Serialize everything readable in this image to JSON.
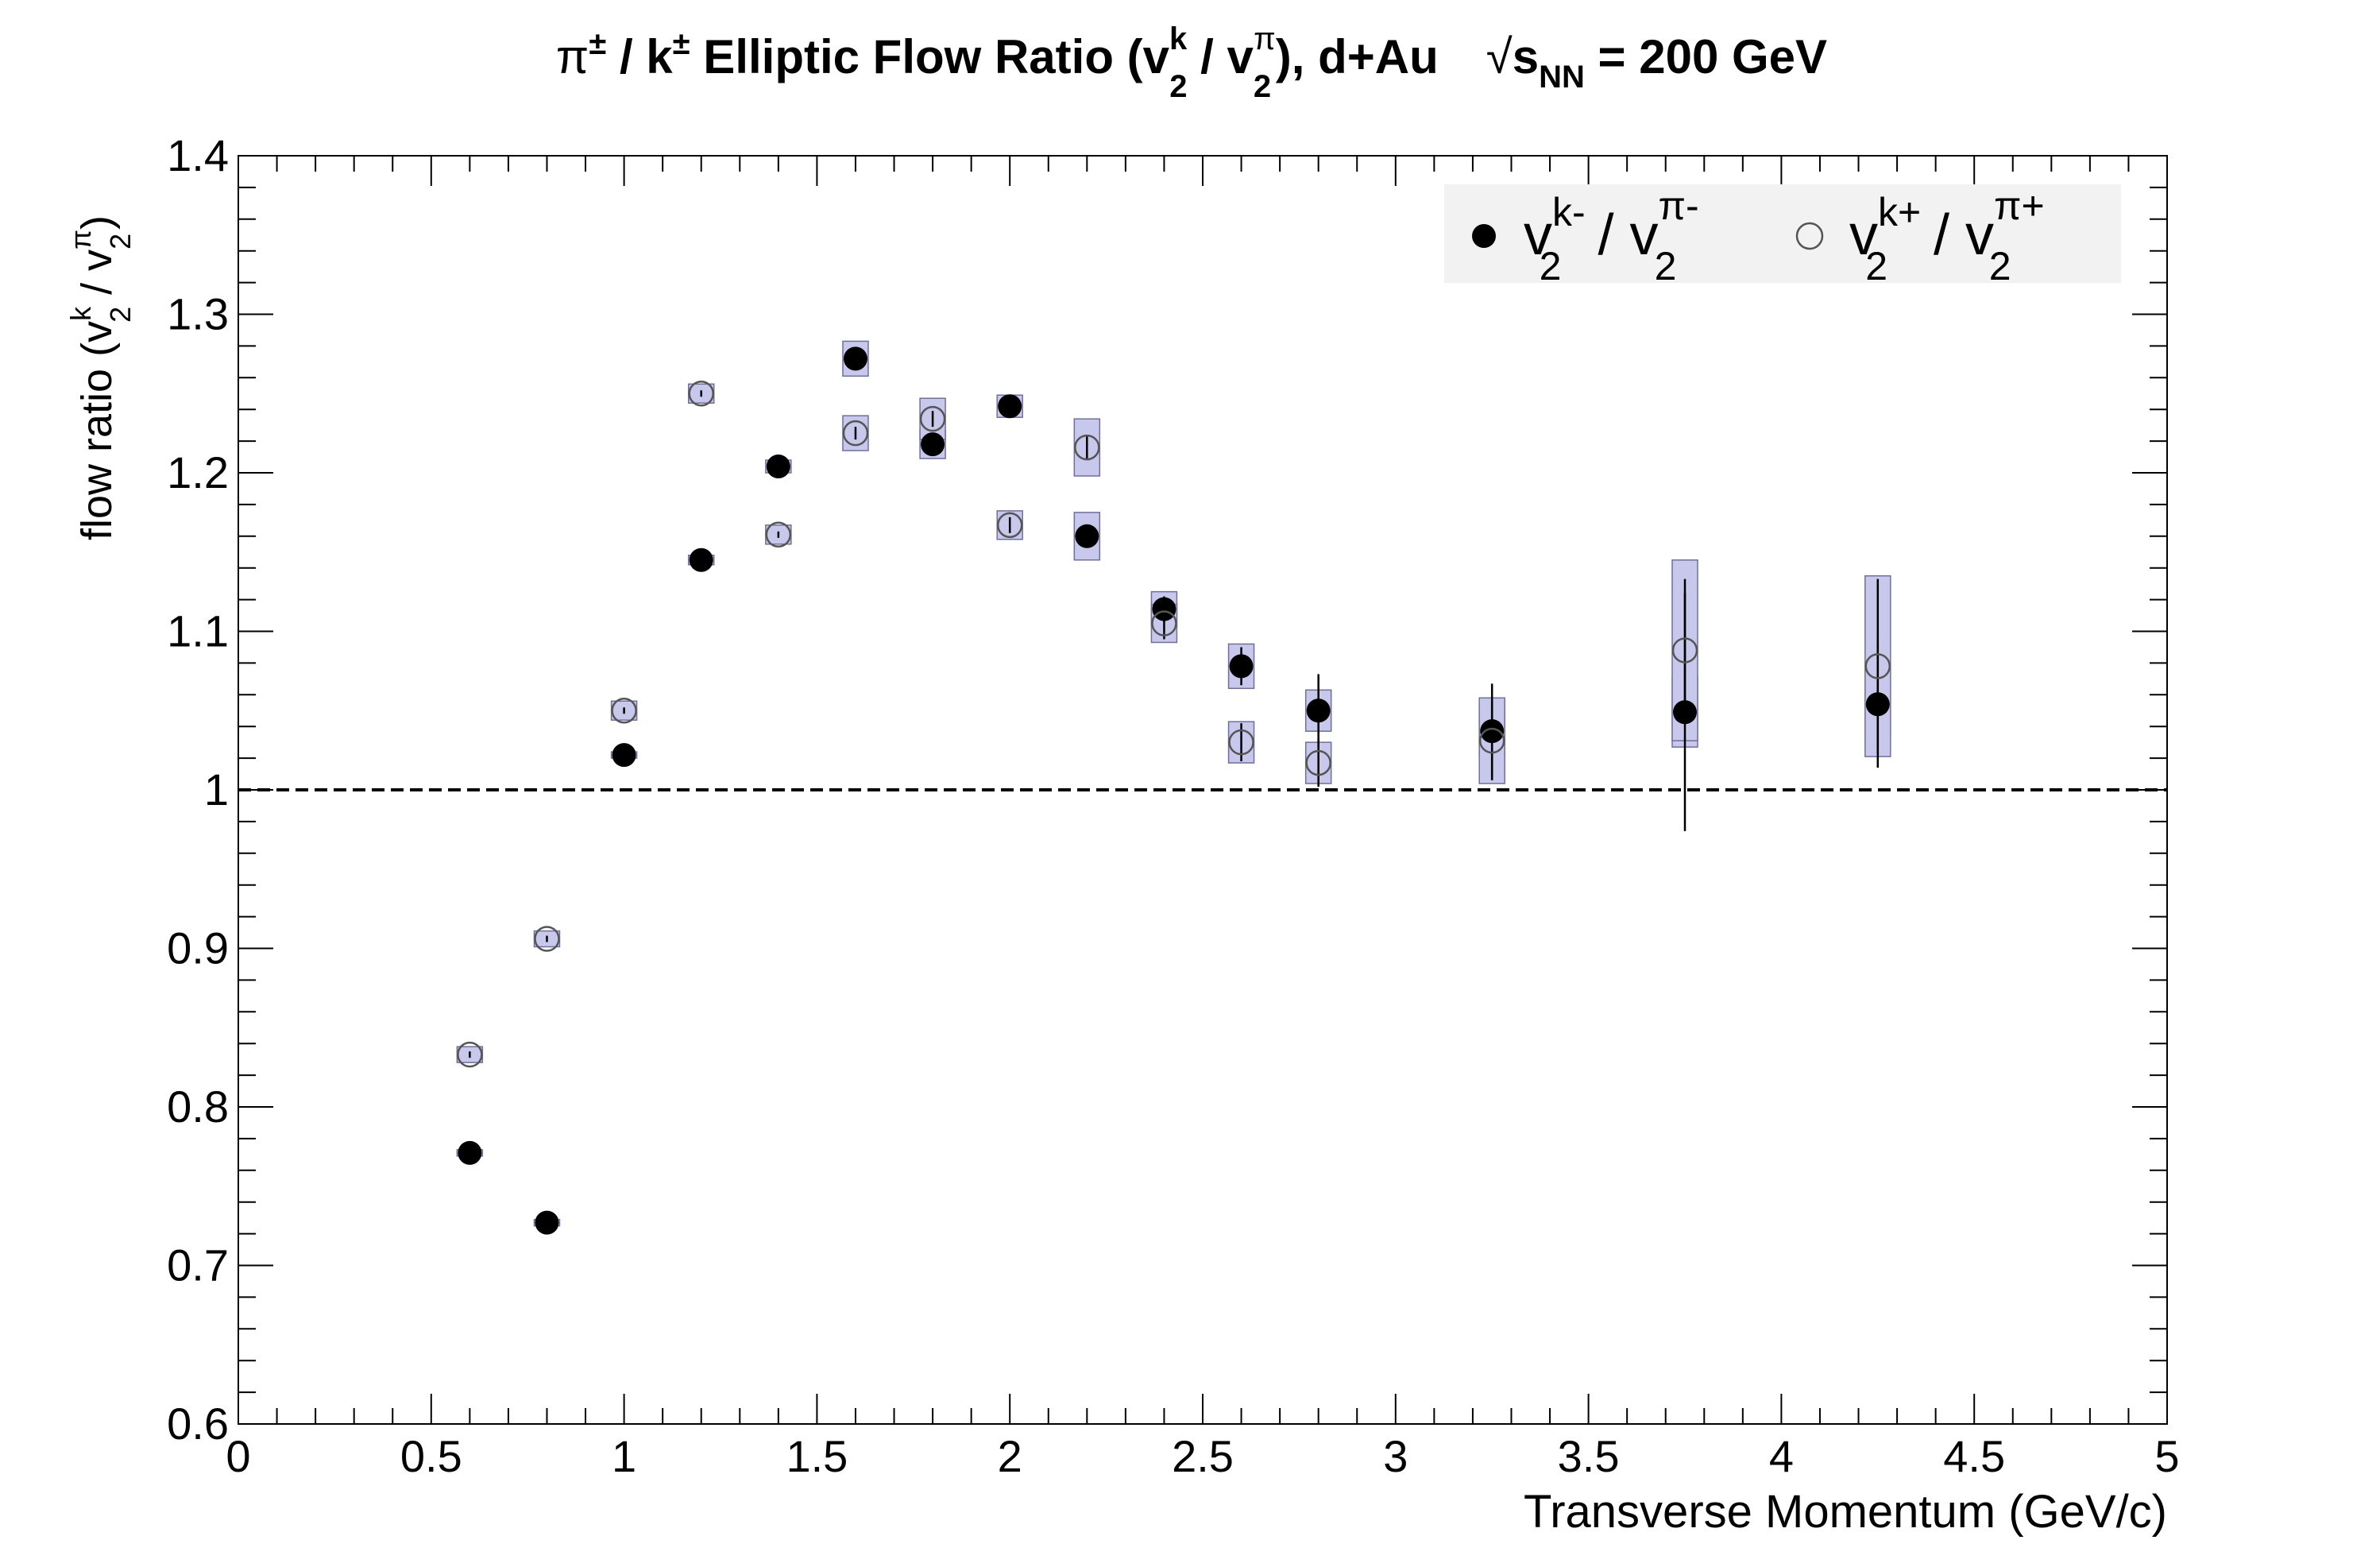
{
  "chart_data": {
    "type": "scatter",
    "title": {
      "prefix_pi": "π",
      "pm": "±",
      "slash": " / ",
      "k": "k",
      "main": " Elliptic Flow Ratio (",
      "v": "v",
      "sup_k": "k",
      "sub_2": "2",
      "slash2": " / ",
      "sup_pi": "π",
      "close": "), d+Au",
      "sqrt": "√",
      "s": "s",
      "sub_nn": "NN",
      "energy": " = 200 GeV"
    },
    "xlabel": "Transverse Momentum (GeV/c)",
    "ylabel": {
      "text": "flow ratio (",
      "v": "v",
      "sup_k": "k",
      "sub_2": "2",
      "slash": " / ",
      "sup_pi": "π",
      "close": ")"
    },
    "xlim": [
      0,
      5
    ],
    "ylim": [
      0.6,
      1.4
    ],
    "x_ticks": [
      "0",
      "0.5",
      "1",
      "1.5",
      "2",
      "2.5",
      "3",
      "3.5",
      "4",
      "4.5",
      "5"
    ],
    "x_tick_values": [
      0,
      0.5,
      1,
      1.5,
      2,
      2.5,
      3,
      3.5,
      4,
      4.5,
      5
    ],
    "y_ticks": [
      "0.6",
      "0.7",
      "0.8",
      "0.9",
      "1",
      "1.1",
      "1.2",
      "1.3",
      "1.4"
    ],
    "y_tick_values": [
      0.6,
      0.7,
      0.8,
      0.9,
      1.0,
      1.1,
      1.2,
      1.3,
      1.4
    ],
    "reference_line": 1.0,
    "grid": false,
    "legend_position": "top-right",
    "colors": {
      "systematic_fill": "#c8c8ec",
      "systematic_edge": "#6f6f9a",
      "filled_marker": "#000000",
      "open_marker_edge": "#555555",
      "legend_bg": "#f2f2f2"
    },
    "series": [
      {
        "name": {
          "v": "v",
          "sup": "k-",
          "sub": "2",
          "slash": " / ",
          "v2": "v",
          "sup2": "π-",
          "sub2": "2"
        },
        "marker": "filled-circle",
        "x": [
          0.6,
          0.8,
          1.0,
          1.2,
          1.4,
          1.6,
          1.8,
          2.0,
          2.2,
          2.4,
          2.6,
          2.8,
          3.25,
          3.75,
          4.25
        ],
        "y": [
          0.771,
          0.727,
          1.022,
          1.145,
          1.204,
          1.272,
          1.218,
          1.242,
          1.16,
          1.114,
          1.078,
          1.05,
          1.037,
          1.049,
          1.054
        ],
        "stat_err": [
          0.002,
          0.002,
          0.002,
          0.002,
          0.003,
          0.003,
          0.004,
          0.005,
          0.006,
          0.008,
          0.012,
          0.023,
          0.03,
          0.075,
          0.04
        ],
        "sys_err": [
          0.002,
          0.002,
          0.002,
          0.003,
          0.004,
          0.011,
          0.009,
          0.007,
          0.015,
          0.011,
          0.014,
          0.013,
          0.016,
          0.022,
          0.022
        ]
      },
      {
        "name": {
          "v": "v",
          "sup": "k+",
          "sub": "2",
          "slash": " / ",
          "v2": "v",
          "sup2": "π+",
          "sub2": "2"
        },
        "marker": "open-circle",
        "x": [
          0.6,
          0.8,
          1.0,
          1.2,
          1.4,
          1.6,
          1.8,
          2.0,
          2.2,
          2.4,
          2.6,
          2.8,
          3.25,
          3.75,
          4.25
        ],
        "y": [
          0.833,
          0.906,
          1.05,
          1.25,
          1.161,
          1.225,
          1.234,
          1.167,
          1.216,
          1.105,
          1.03,
          1.017,
          1.031,
          1.088,
          1.078
        ],
        "stat_err": [
          0.002,
          0.002,
          0.002,
          0.002,
          0.002,
          0.004,
          0.005,
          0.005,
          0.008,
          0.01,
          0.012,
          0.015,
          0.025,
          0.045,
          0.055
        ],
        "sys_err": [
          0.005,
          0.005,
          0.006,
          0.006,
          0.006,
          0.011,
          0.013,
          0.009,
          0.018,
          0.012,
          0.013,
          0.013,
          0.027,
          0.057,
          0.057
        ]
      }
    ]
  }
}
